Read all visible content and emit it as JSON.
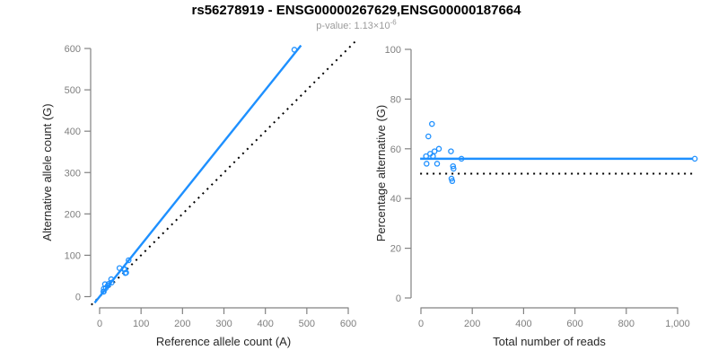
{
  "header": {
    "title": "rs56278919 - ENSG00000267629,ENSG00000187664",
    "pvalue_base": "p-value: 1.13×10",
    "pvalue_exponent": "-6"
  },
  "colors": {
    "accent_blue": "#1E90FF",
    "dotted_black": "#000000",
    "axis_gray": "#828282",
    "tick_label_gray": "#7f7f7f",
    "axis_title_dark": "#262626",
    "title_black": "#000000",
    "subtitle_gray": "#9b9b9b"
  },
  "chart_data": [
    {
      "type": "scatter",
      "name": "allele-counts-scatter",
      "xlabel": "Reference allele count (A)",
      "ylabel": "Alternative allele count (G)",
      "xlim": [
        0,
        600
      ],
      "ylim": [
        0,
        600
      ],
      "grid": false,
      "xticks": [
        0,
        100,
        200,
        300,
        400,
        500,
        600
      ],
      "xtick_labels": [
        "0",
        "100",
        "200",
        "300",
        "400",
        "500",
        "600"
      ],
      "yticks": [
        0,
        100,
        200,
        300,
        400,
        500,
        600
      ],
      "ytick_labels": [
        "0",
        "100",
        "200",
        "300",
        "400",
        "500",
        "600"
      ],
      "points": [
        [
          9,
          12
        ],
        [
          10,
          12
        ],
        [
          10,
          19
        ],
        [
          13,
          30
        ],
        [
          15,
          21
        ],
        [
          20,
          27
        ],
        [
          22,
          31
        ],
        [
          28,
          42
        ],
        [
          29,
          34
        ],
        [
          48,
          69
        ],
        [
          59,
          66
        ],
        [
          61,
          66
        ],
        [
          62,
          57
        ],
        [
          64,
          58
        ],
        [
          70,
          88
        ],
        [
          470,
          597
        ]
      ],
      "fit_line": {
        "slope": 1.25,
        "intercept": 0,
        "style": "solid",
        "color": "#1E90FF"
      },
      "identity_line": {
        "slope": 1,
        "intercept": 0,
        "style": "dotted",
        "color": "#000000"
      }
    },
    {
      "type": "scatter",
      "name": "percentage-vs-reads-scatter",
      "xlabel": "Total number of reads",
      "ylabel": "Percentage alternative (G)",
      "xlim": [
        0,
        1100
      ],
      "ylim": [
        0,
        100
      ],
      "grid": false,
      "xticks": [
        0,
        200,
        400,
        600,
        800,
        1000
      ],
      "xtick_labels": [
        "0",
        "200",
        "400",
        "600",
        "800",
        "1,000"
      ],
      "yticks": [
        0,
        20,
        40,
        60,
        80,
        100
      ],
      "ytick_labels": [
        "0",
        "20",
        "40",
        "60",
        "80",
        "100"
      ],
      "points": [
        [
          20,
          57
        ],
        [
          22,
          54
        ],
        [
          29,
          65
        ],
        [
          36,
          58
        ],
        [
          43,
          70
        ],
        [
          47,
          57
        ],
        [
          53,
          59
        ],
        [
          63,
          54
        ],
        [
          70,
          60
        ],
        [
          117,
          59
        ],
        [
          119,
          48
        ],
        [
          122,
          47
        ],
        [
          125,
          53
        ],
        [
          127,
          52
        ],
        [
          158,
          56
        ],
        [
          1067,
          56
        ]
      ],
      "mean_line": {
        "y": 56,
        "style": "solid",
        "color": "#1E90FF"
      },
      "ref_line": {
        "y": 50,
        "style": "dotted",
        "color": "#000000"
      }
    }
  ]
}
